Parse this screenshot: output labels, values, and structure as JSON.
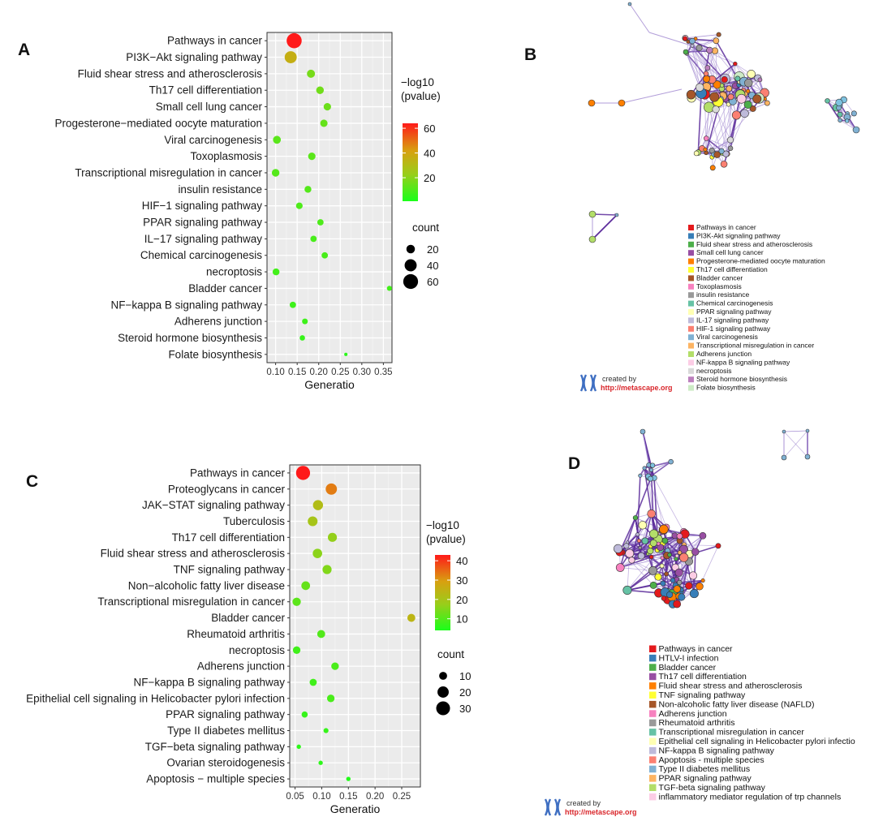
{
  "panels": {
    "A": "A",
    "B": "B",
    "C": "C",
    "D": "D"
  },
  "chart_data": [
    {
      "id": "A",
      "type": "scatter",
      "subtype": "dot-plot",
      "xlabel": "Generatio",
      "xlim": [
        0.08,
        0.37
      ],
      "xticks": [
        0.1,
        0.15,
        0.2,
        0.25,
        0.3,
        0.35
      ],
      "xtick_labels": [
        "0.10",
        "0.15",
        "0.20",
        "0.25",
        "0.30",
        "0.35"
      ],
      "color_legend": {
        "title": [
          "−log10",
          "(pvalue)"
        ],
        "min": 1,
        "max": 64,
        "ticks": [
          20,
          40,
          60
        ],
        "tick_labels": [
          "20",
          "40",
          "60"
        ]
      },
      "size_legend": {
        "title": "count",
        "values": [
          20,
          40,
          60
        ],
        "labels": [
          "20",
          "40",
          "60"
        ],
        "max_count": 65
      },
      "terms": [
        {
          "label": "Pathways in cancer",
          "x": 0.143,
          "count": 62,
          "logp": 64
        },
        {
          "label": "PI3K−Akt signaling pathway",
          "x": 0.135,
          "count": 40,
          "logp": 36
        },
        {
          "label": "Fluid shear stress and atherosclerosis",
          "x": 0.182,
          "count": 18,
          "logp": 17
        },
        {
          "label": "Th17 cell differentiation",
          "x": 0.203,
          "count": 16,
          "logp": 16
        },
        {
          "label": "Small cell lung cancer",
          "x": 0.22,
          "count": 15,
          "logp": 15
        },
        {
          "label": "Progesterone−mediated oocyte maturation",
          "x": 0.212,
          "count": 15,
          "logp": 14
        },
        {
          "label": "Viral carcinogenesis",
          "x": 0.103,
          "count": 17,
          "logp": 12
        },
        {
          "label": "Toxoplasmosis",
          "x": 0.184,
          "count": 15,
          "logp": 12
        },
        {
          "label": "Transcriptional misregulation in cancer",
          "x": 0.1,
          "count": 16,
          "logp": 11
        },
        {
          "label": "insulin resistance",
          "x": 0.175,
          "count": 13,
          "logp": 11
        },
        {
          "label": "HIF−1 signaling pathway",
          "x": 0.155,
          "count": 12,
          "logp": 10
        },
        {
          "label": "PPAR signaling pathway",
          "x": 0.204,
          "count": 11,
          "logp": 10
        },
        {
          "label": "IL−17 signaling pathway",
          "x": 0.188,
          "count": 11,
          "logp": 9
        },
        {
          "label": "Chemical carcinogenesis",
          "x": 0.214,
          "count": 11,
          "logp": 9
        },
        {
          "label": "necroptosis",
          "x": 0.101,
          "count": 13,
          "logp": 8
        },
        {
          "label": "Bladder cancer",
          "x": 0.364,
          "count": 7,
          "logp": 8
        },
        {
          "label": "NF−kappa B signaling pathway",
          "x": 0.14,
          "count": 11,
          "logp": 7
        },
        {
          "label": "Adherens junction",
          "x": 0.168,
          "count": 9,
          "logp": 7
        },
        {
          "label": "Steroid hormone biosynthesis",
          "x": 0.162,
          "count": 8,
          "logp": 6
        },
        {
          "label": "Folate biosynthesis",
          "x": 0.263,
          "count": 3,
          "logp": 4
        }
      ]
    },
    {
      "id": "C",
      "type": "scatter",
      "subtype": "dot-plot",
      "xlabel": "Generatio",
      "xlim": [
        0.04,
        0.285
      ],
      "xticks": [
        0.05,
        0.1,
        0.15,
        0.2,
        0.25
      ],
      "xtick_labels": [
        "0.05",
        "0.10",
        "0.15",
        "0.20",
        "0.25"
      ],
      "color_legend": {
        "title": [
          "−log10",
          "(pvalue)"
        ],
        "min": 4,
        "max": 43,
        "ticks": [
          10,
          20,
          30,
          40
        ],
        "tick_labels": [
          "10",
          "20",
          "30",
          "40"
        ]
      },
      "size_legend": {
        "title": "count",
        "values": [
          10,
          20,
          30
        ],
        "labels": [
          "10",
          "20",
          "30"
        ],
        "max_count": 32
      },
      "terms": [
        {
          "label": "Pathways in cancer",
          "x": 0.065,
          "count": 31,
          "logp": 43
        },
        {
          "label": "Proteoglycans in cancer",
          "x": 0.118,
          "count": 20,
          "logp": 33
        },
        {
          "label": "JAK−STAT signaling pathway",
          "x": 0.093,
          "count": 16,
          "logp": 22
        },
        {
          "label": "Tuberculosis",
          "x": 0.083,
          "count": 15,
          "logp": 20
        },
        {
          "label": "Th17 cell differentiation",
          "x": 0.12,
          "count": 13,
          "logp": 17
        },
        {
          "label": "Fluid shear stress and atherosclerosis",
          "x": 0.092,
          "count": 14,
          "logp": 16
        },
        {
          "label": "TNF signaling pathway",
          "x": 0.11,
          "count": 13,
          "logp": 15
        },
        {
          "label": "Non−alcoholic fatty liver disease",
          "x": 0.07,
          "count": 12,
          "logp": 12
        },
        {
          "label": "Transcriptional misregulation in cancer",
          "x": 0.053,
          "count": 11,
          "logp": 11
        },
        {
          "label": "Bladder cancer",
          "x": 0.268,
          "count": 10,
          "logp": 24
        },
        {
          "label": "Rheumatoid arthritis",
          "x": 0.099,
          "count": 10,
          "logp": 10
        },
        {
          "label": "necroptosis",
          "x": 0.053,
          "count": 9,
          "logp": 8
        },
        {
          "label": "Adherens junction",
          "x": 0.125,
          "count": 9,
          "logp": 9
        },
        {
          "label": "NF−kappa B signaling pathway",
          "x": 0.084,
          "count": 8,
          "logp": 8
        },
        {
          "label": "Epithelial cell signaling in Helicobacter pylori infection",
          "x": 0.117,
          "count": 9,
          "logp": 9
        },
        {
          "label": "PPAR signaling pathway",
          "x": 0.068,
          "count": 6,
          "logp": 7
        },
        {
          "label": "Type II diabetes mellitus",
          "x": 0.108,
          "count": 4,
          "logp": 7
        },
        {
          "label": "TGF−beta signaling pathway",
          "x": 0.057,
          "count": 3,
          "logp": 6
        },
        {
          "label": "Ovarian steroidogenesis",
          "x": 0.098,
          "count": 3,
          "logp": 6
        },
        {
          "label": "Apoptosis − multiple species",
          "x": 0.15,
          "count": 3,
          "logp": 5
        }
      ]
    }
  ],
  "networks": [
    {
      "id": "B",
      "legend": [
        {
          "label": "Pathways in cancer",
          "color": "#e41a1c"
        },
        {
          "label": "PI3K-Akt signaling pathway",
          "color": "#377eb8"
        },
        {
          "label": "Fluid shear stress and atherosclerosis",
          "color": "#4daf4a"
        },
        {
          "label": "Small cell lung cancer",
          "color": "#984ea3"
        },
        {
          "label": "Progesterone-mediated oocyte maturation",
          "color": "#ff7f00"
        },
        {
          "label": "Th17 cell differentiation",
          "color": "#ffff33"
        },
        {
          "label": "Bladder cancer",
          "color": "#a65628"
        },
        {
          "label": "Toxoplasmosis",
          "color": "#f781bf"
        },
        {
          "label": "insulin resistance",
          "color": "#999999"
        },
        {
          "label": "Chemical carcinogenesis",
          "color": "#66c2a5"
        },
        {
          "label": "PPAR signaling pathway",
          "color": "#ffffb3"
        },
        {
          "label": "IL-17 signaling pathway",
          "color": "#bebada"
        },
        {
          "label": "HIF-1 signaling pathway",
          "color": "#fb8072"
        },
        {
          "label": "Viral carcinogenesis",
          "color": "#80b1d3"
        },
        {
          "label": "Transcriptional misregulation in cancer",
          "color": "#fdb462"
        },
        {
          "label": "Adherens junction",
          "color": "#b3de69"
        },
        {
          "label": "NF-kappa B signaling pathway",
          "color": "#fccde5"
        },
        {
          "label": "necroptosis",
          "color": "#d9d9d9"
        },
        {
          "label": "Steroid hormone biosynthesis",
          "color": "#bc80bd"
        },
        {
          "label": "Folate biosynthesis",
          "color": "#ccebc5"
        }
      ],
      "created_by": "created by",
      "url": "http://metascape.org"
    },
    {
      "id": "D",
      "legend": [
        {
          "label": "Pathways in cancer",
          "color": "#e41a1c"
        },
        {
          "label": "HTLV-I infection",
          "color": "#377eb8"
        },
        {
          "label": "Bladder cancer",
          "color": "#4daf4a"
        },
        {
          "label": "Th17 cell differentiation",
          "color": "#984ea3"
        },
        {
          "label": "Fluid shear stress and atherosclerosis",
          "color": "#ff7f00"
        },
        {
          "label": "TNF signaling pathway",
          "color": "#ffff33"
        },
        {
          "label": "Non-alcoholic fatty liver disease (NAFLD)",
          "color": "#a65628"
        },
        {
          "label": "Adherens junction",
          "color": "#f781bf"
        },
        {
          "label": "Rheumatoid arthritis",
          "color": "#999999"
        },
        {
          "label": "Transcriptional misregulation in cancer",
          "color": "#66c2a5"
        },
        {
          "label": "Epithelial cell signaling in Helicobacter pylori infectio",
          "color": "#ffffb3"
        },
        {
          "label": "NF-kappa B signaling pathway",
          "color": "#bebada"
        },
        {
          "label": "Apoptosis - multiple species",
          "color": "#fb8072"
        },
        {
          "label": "Type II diabetes mellitus",
          "color": "#80b1d3"
        },
        {
          "label": "PPAR signaling pathway",
          "color": "#fdb462"
        },
        {
          "label": "TGF-beta signaling pathway",
          "color": "#b3de69"
        },
        {
          "label": "inflammatory mediator regulation of trp channels",
          "color": "#fccde5"
        }
      ],
      "created_by": "created by",
      "url": "http://metascape.org"
    }
  ]
}
